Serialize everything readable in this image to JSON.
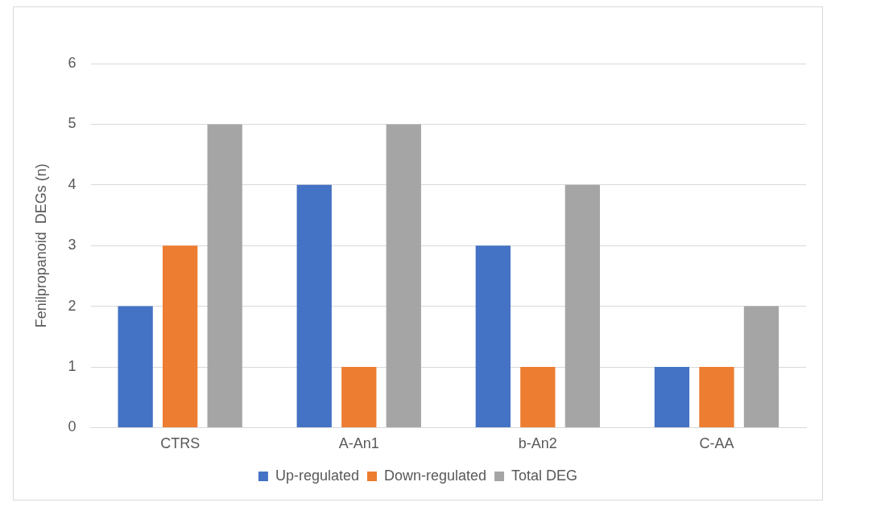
{
  "chart_data": {
    "type": "bar",
    "ylabel": "Fenilpropanoid  DEGs (n)",
    "categories": [
      "CTRS",
      "A-An1",
      "b-An2",
      "C-AA"
    ],
    "series": [
      {
        "name": "Up-regulated",
        "color": "#4472c4",
        "values": [
          2,
          4,
          3,
          1
        ]
      },
      {
        "name": "Down-regulated",
        "color": "#ed7d31",
        "values": [
          3,
          1,
          1,
          1
        ]
      },
      {
        "name": "Total DEG",
        "color": "#a5a5a5",
        "values": [
          5,
          5,
          4,
          2
        ]
      }
    ],
    "ylim": [
      0,
      6
    ],
    "yticks": [
      0,
      1,
      2,
      3,
      4,
      5,
      6
    ],
    "grid": "y",
    "legend": "bottom"
  }
}
